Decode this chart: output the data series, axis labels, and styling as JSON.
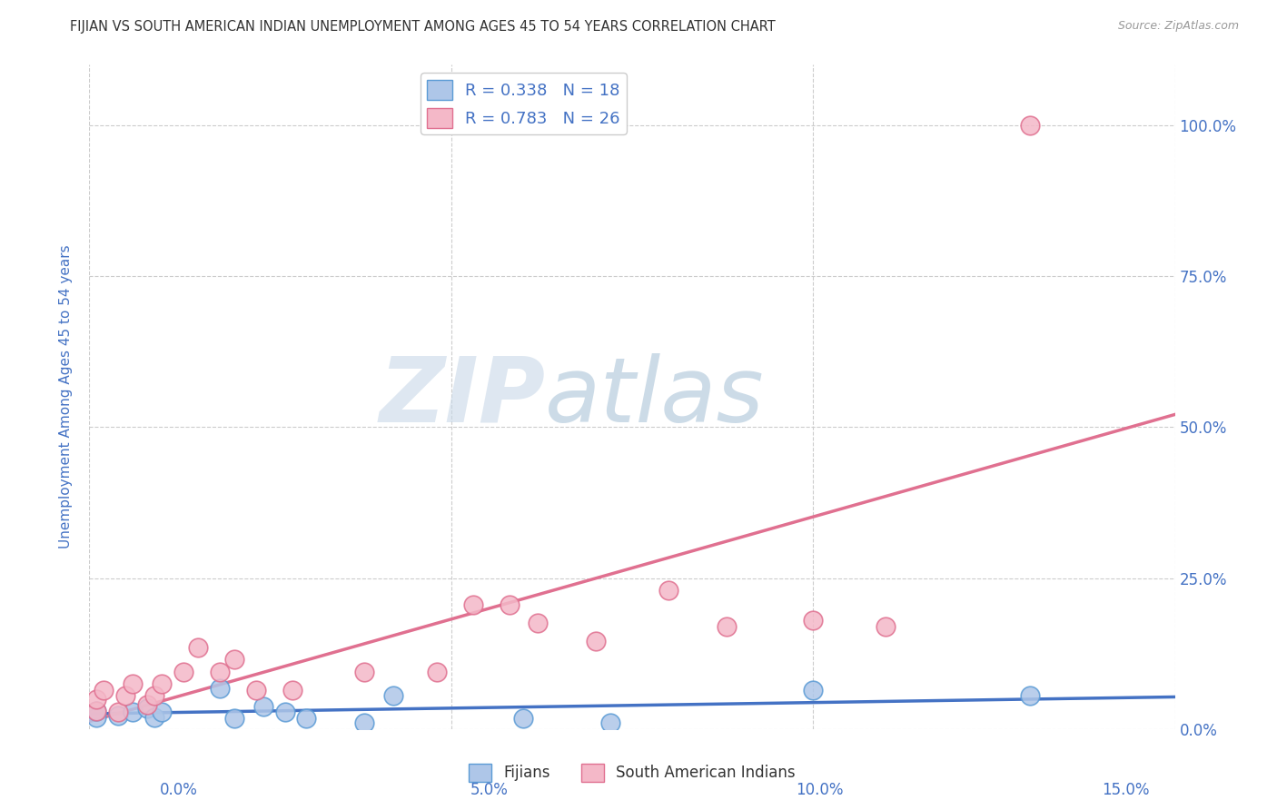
{
  "title": "FIJIAN VS SOUTH AMERICAN INDIAN UNEMPLOYMENT AMONG AGES 45 TO 54 YEARS CORRELATION CHART",
  "source": "Source: ZipAtlas.com",
  "ylabel": "Unemployment Among Ages 45 to 54 years",
  "xlim": [
    0,
    0.15
  ],
  "ylim": [
    0,
    1.1
  ],
  "xticks": [
    0.0,
    0.05,
    0.1,
    0.15
  ],
  "xtick_labels": [
    "0.0%",
    "5.0%",
    "10.0%",
    "15.0%"
  ],
  "yticks": [
    0.0,
    0.25,
    0.5,
    0.75,
    1.0
  ],
  "ytick_labels": [
    "0.0%",
    "25.0%",
    "50.0%",
    "75.0%",
    "100.0%"
  ],
  "fijian_color": "#aec6e8",
  "fijian_edge_color": "#5b9bd5",
  "sa_indian_color": "#f4b8c8",
  "sa_indian_edge_color": "#e07090",
  "fijian_line_color": "#4472c4",
  "sa_indian_line_color": "#e07090",
  "fijian_R": 0.338,
  "fijian_N": 18,
  "sa_indian_R": 0.783,
  "sa_indian_N": 26,
  "watermark_zip": "ZIP",
  "watermark_atlas": "atlas",
  "legend_label_1": "Fijians",
  "legend_label_2": "South American Indians",
  "fijian_x": [
    0.001,
    0.001,
    0.004,
    0.006,
    0.008,
    0.009,
    0.01,
    0.018,
    0.02,
    0.024,
    0.027,
    0.03,
    0.038,
    0.042,
    0.06,
    0.072,
    0.1,
    0.13
  ],
  "fijian_y": [
    0.02,
    0.03,
    0.022,
    0.028,
    0.035,
    0.02,
    0.028,
    0.068,
    0.018,
    0.038,
    0.028,
    0.018,
    0.01,
    0.055,
    0.018,
    0.01,
    0.065,
    0.055
  ],
  "sa_indian_x": [
    0.001,
    0.001,
    0.002,
    0.004,
    0.005,
    0.006,
    0.008,
    0.009,
    0.01,
    0.013,
    0.015,
    0.018,
    0.02,
    0.023,
    0.028,
    0.038,
    0.048,
    0.053,
    0.058,
    0.062,
    0.07,
    0.08,
    0.088,
    0.1,
    0.11,
    0.13
  ],
  "sa_indian_y": [
    0.03,
    0.05,
    0.065,
    0.028,
    0.055,
    0.075,
    0.04,
    0.055,
    0.075,
    0.095,
    0.135,
    0.095,
    0.115,
    0.065,
    0.065,
    0.095,
    0.095,
    0.205,
    0.205,
    0.175,
    0.145,
    0.23,
    0.17,
    0.18,
    0.17,
    1.0
  ],
  "background_color": "#ffffff",
  "grid_color": "#cccccc",
  "title_color": "#333333",
  "axis_label_color": "#4472c4",
  "tick_label_color": "#4472c4",
  "source_color": "#999999",
  "watermark_zip_color": "#c8d8e8",
  "watermark_atlas_color": "#9ab8d0"
}
